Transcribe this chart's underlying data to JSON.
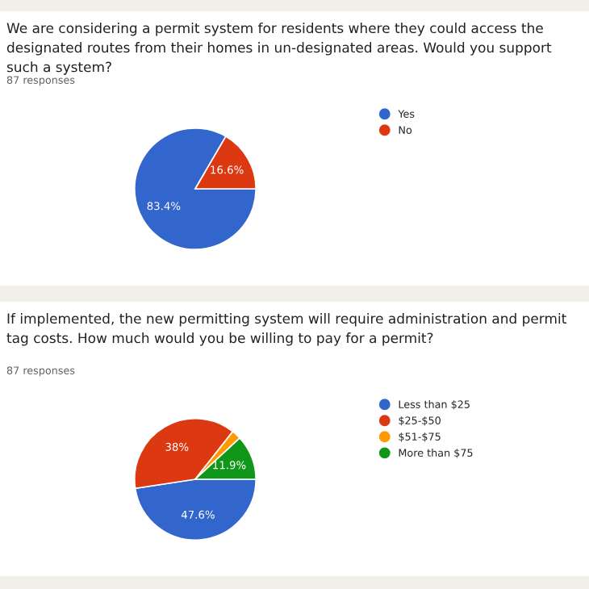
{
  "chart_data": [
    {
      "type": "pie",
      "title": "We are considering a permit system for residents where they could access the designated routes from their homes in un-designated areas. Would you support such a system?",
      "subtitle": "87 responses",
      "categories": [
        "Yes",
        "No"
      ],
      "values": [
        83.4,
        16.6
      ],
      "colors": [
        "#3366cc",
        "#dc3912"
      ],
      "value_labels": [
        "83.4%",
        "16.6%"
      ],
      "legend": "right"
    },
    {
      "type": "pie",
      "title": "If implemented, the new permitting system will require administration and permit tag costs. How much would you be willing to pay for a permit?",
      "subtitle": "87 responses",
      "categories": [
        "Less than $25",
        "$25-$50",
        "$51-$75",
        "More than $75"
      ],
      "values": [
        47.6,
        38,
        2.5,
        11.9
      ],
      "colors": [
        "#3366cc",
        "#dc3912",
        "#ff9900",
        "#109618"
      ],
      "value_labels": [
        "47.6%",
        "38%",
        null,
        "11.9%"
      ],
      "legend": "right"
    }
  ]
}
